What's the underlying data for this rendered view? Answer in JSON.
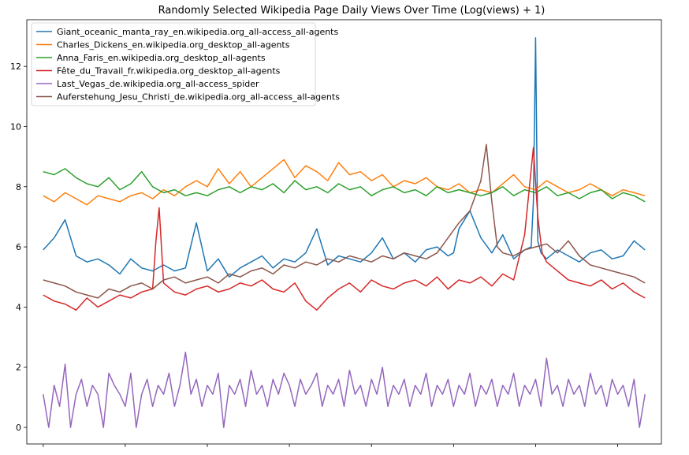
{
  "chart_data": {
    "type": "line",
    "title": "Randomly Selected Wikipedia Page Daily Views Over Time (Log(views) + 1)",
    "xlabel": "",
    "ylabel": "",
    "ylim": [
      -0.55,
      13.55
    ],
    "xlim": [
      -15,
      565
    ],
    "yticks": [
      0,
      2,
      4,
      6,
      8,
      10,
      12
    ],
    "ytick_labels": [
      "0",
      "2",
      "4",
      "6",
      "8",
      "10",
      "12"
    ],
    "xticks": [
      0,
      75,
      150,
      225,
      300,
      375,
      450,
      525
    ],
    "xtick_labels": [
      "",
      "",
      "",
      "",
      "",
      "",
      "",
      ""
    ],
    "legend_position": "top-left",
    "grid": false,
    "series": [
      {
        "name": "Giant_oceanic_manta_ray_en.wikipedia.org_all-access_all-agents",
        "color": "#1f77b4",
        "x": [
          0,
          10,
          20,
          30,
          40,
          50,
          60,
          70,
          80,
          90,
          100,
          110,
          120,
          130,
          140,
          150,
          160,
          170,
          180,
          190,
          200,
          210,
          220,
          230,
          240,
          250,
          260,
          270,
          280,
          290,
          300,
          310,
          320,
          330,
          340,
          350,
          360,
          370,
          375,
          380,
          390,
          400,
          410,
          420,
          430,
          440,
          446,
          448,
          450,
          452,
          455,
          460,
          470,
          480,
          490,
          500,
          510,
          520,
          530,
          540,
          550
        ],
        "y": [
          5.9,
          6.3,
          6.9,
          5.7,
          5.5,
          5.6,
          5.4,
          5.1,
          5.6,
          5.3,
          5.2,
          5.4,
          5.2,
          5.3,
          6.8,
          5.2,
          5.6,
          5.0,
          5.3,
          5.5,
          5.7,
          5.3,
          5.6,
          5.5,
          5.8,
          6.6,
          5.4,
          5.7,
          5.6,
          5.5,
          5.8,
          6.3,
          5.6,
          5.8,
          5.5,
          5.9,
          6.0,
          5.7,
          5.8,
          6.6,
          7.2,
          6.3,
          5.8,
          6.4,
          5.6,
          5.9,
          6.0,
          7.5,
          12.95,
          6.2,
          5.8,
          5.6,
          5.9,
          5.7,
          5.5,
          5.8,
          5.9,
          5.6,
          5.7,
          6.2,
          5.9
        ]
      },
      {
        "name": "Charles_Dickens_en.wikipedia.org_desktop_all-agents",
        "color": "#ff7f0e",
        "x": [
          0,
          10,
          20,
          30,
          40,
          50,
          60,
          70,
          80,
          90,
          100,
          110,
          120,
          130,
          140,
          150,
          160,
          170,
          180,
          190,
          200,
          210,
          220,
          230,
          240,
          250,
          260,
          270,
          280,
          290,
          300,
          310,
          320,
          330,
          340,
          350,
          360,
          370,
          380,
          390,
          400,
          410,
          420,
          430,
          440,
          450,
          460,
          470,
          480,
          490,
          500,
          510,
          520,
          530,
          540,
          550
        ],
        "y": [
          7.7,
          7.5,
          7.8,
          7.6,
          7.4,
          7.7,
          7.6,
          7.5,
          7.7,
          7.8,
          7.6,
          7.9,
          7.7,
          8.0,
          8.2,
          8.0,
          8.6,
          8.1,
          8.5,
          8.0,
          8.3,
          8.6,
          8.9,
          8.3,
          8.7,
          8.5,
          8.2,
          8.8,
          8.4,
          8.5,
          8.2,
          8.4,
          8.0,
          8.2,
          8.1,
          8.3,
          8.0,
          7.9,
          8.1,
          7.8,
          7.9,
          7.8,
          8.1,
          8.4,
          8.0,
          7.9,
          8.2,
          8.0,
          7.8,
          7.9,
          8.1,
          7.9,
          7.7,
          7.9,
          7.8,
          7.7
        ]
      },
      {
        "name": "Anna_Faris_en.wikipedia.org_desktop_all-agents",
        "color": "#2ca02c",
        "x": [
          0,
          10,
          20,
          30,
          40,
          50,
          60,
          70,
          80,
          90,
          100,
          110,
          120,
          130,
          140,
          150,
          160,
          170,
          180,
          190,
          200,
          210,
          220,
          230,
          240,
          250,
          260,
          270,
          280,
          290,
          300,
          310,
          320,
          330,
          340,
          350,
          360,
          370,
          380,
          390,
          400,
          410,
          420,
          430,
          440,
          450,
          460,
          470,
          480,
          490,
          500,
          510,
          520,
          530,
          540,
          550
        ],
        "y": [
          8.5,
          8.4,
          8.6,
          8.3,
          8.1,
          8.0,
          8.3,
          7.9,
          8.1,
          8.5,
          8.0,
          7.8,
          7.9,
          7.7,
          7.8,
          7.7,
          7.9,
          8.0,
          7.8,
          8.0,
          7.9,
          8.1,
          7.8,
          8.2,
          7.9,
          8.0,
          7.8,
          8.1,
          7.9,
          8.0,
          7.7,
          7.9,
          8.0,
          7.8,
          7.9,
          7.7,
          8.0,
          7.8,
          7.9,
          7.8,
          7.7,
          7.8,
          8.0,
          7.7,
          7.9,
          7.8,
          8.0,
          7.7,
          7.8,
          7.6,
          7.8,
          7.9,
          7.6,
          7.8,
          7.7,
          7.5
        ]
      },
      {
        "name": "Fête_du_Travail_fr.wikipedia.org_desktop_all-agents",
        "color": "#d62728",
        "x": [
          0,
          10,
          20,
          30,
          40,
          50,
          60,
          70,
          80,
          90,
          100,
          103,
          106,
          110,
          120,
          130,
          140,
          150,
          160,
          170,
          180,
          190,
          200,
          210,
          220,
          230,
          240,
          250,
          260,
          270,
          280,
          290,
          300,
          310,
          320,
          330,
          340,
          350,
          360,
          370,
          380,
          390,
          400,
          410,
          420,
          430,
          440,
          448,
          452,
          456,
          460,
          470,
          480,
          490,
          500,
          510,
          520,
          530,
          540,
          550
        ],
        "y": [
          4.4,
          4.2,
          4.1,
          3.9,
          4.3,
          4.0,
          4.2,
          4.4,
          4.3,
          4.5,
          4.6,
          6.2,
          7.3,
          4.8,
          4.5,
          4.4,
          4.6,
          4.7,
          4.5,
          4.6,
          4.8,
          4.7,
          4.9,
          4.6,
          4.5,
          4.8,
          4.2,
          3.9,
          4.3,
          4.6,
          4.8,
          4.5,
          4.9,
          4.7,
          4.6,
          4.8,
          4.9,
          4.7,
          5.0,
          4.6,
          4.9,
          4.8,
          5.0,
          4.7,
          5.1,
          4.9,
          6.4,
          9.3,
          7.0,
          5.8,
          5.5,
          5.2,
          4.9,
          4.8,
          4.7,
          4.9,
          4.6,
          4.8,
          4.5,
          4.3
        ]
      },
      {
        "name": "Last_Vegas_de.wikipedia.org_all-access_spider",
        "color": "#9467bd",
        "x": [
          0,
          5,
          10,
          15,
          20,
          25,
          30,
          35,
          40,
          45,
          50,
          55,
          60,
          65,
          70,
          75,
          80,
          85,
          90,
          95,
          100,
          105,
          110,
          115,
          120,
          125,
          130,
          135,
          140,
          145,
          150,
          155,
          160,
          165,
          170,
          175,
          180,
          185,
          190,
          195,
          200,
          205,
          210,
          215,
          220,
          225,
          230,
          235,
          240,
          245,
          250,
          255,
          260,
          265,
          270,
          275,
          280,
          285,
          290,
          295,
          300,
          305,
          310,
          315,
          320,
          325,
          330,
          335,
          340,
          345,
          350,
          355,
          360,
          365,
          370,
          375,
          380,
          385,
          390,
          395,
          400,
          405,
          410,
          415,
          420,
          425,
          430,
          435,
          440,
          445,
          450,
          455,
          460,
          465,
          470,
          475,
          480,
          485,
          490,
          495,
          500,
          505,
          510,
          515,
          520,
          525,
          530,
          535,
          540,
          545,
          550
        ],
        "y": [
          1.1,
          0.0,
          1.4,
          0.7,
          2.1,
          0.0,
          1.1,
          1.6,
          0.7,
          1.4,
          1.1,
          0.0,
          1.8,
          1.4,
          1.1,
          0.7,
          1.8,
          0.0,
          1.1,
          1.6,
          0.7,
          1.4,
          1.1,
          1.8,
          0.7,
          1.4,
          2.5,
          1.1,
          1.6,
          0.7,
          1.4,
          1.1,
          1.8,
          0.0,
          1.4,
          1.1,
          1.6,
          0.7,
          1.9,
          1.1,
          1.4,
          0.7,
          1.6,
          1.1,
          1.8,
          1.4,
          0.7,
          1.6,
          1.1,
          1.4,
          1.8,
          0.7,
          1.4,
          1.1,
          1.6,
          0.7,
          1.9,
          1.1,
          1.4,
          0.7,
          1.6,
          1.1,
          2.0,
          0.7,
          1.4,
          1.1,
          1.6,
          0.7,
          1.4,
          1.1,
          1.8,
          0.7,
          1.4,
          1.1,
          1.6,
          0.7,
          1.4,
          1.1,
          1.8,
          0.7,
          1.4,
          1.1,
          1.6,
          0.7,
          1.4,
          1.1,
          1.8,
          0.7,
          1.4,
          1.1,
          1.6,
          0.7,
          2.3,
          1.1,
          1.4,
          0.7,
          1.6,
          1.1,
          1.4,
          0.7,
          1.8,
          1.1,
          1.4,
          0.7,
          1.6,
          1.1,
          1.4,
          0.7,
          1.6,
          0.0,
          1.1
        ]
      },
      {
        "name": "Auferstehung_Jesu_Christi_de.wikipedia.org_all-access_all-agents",
        "color": "#8c564b",
        "x": [
          0,
          10,
          20,
          30,
          40,
          50,
          60,
          70,
          80,
          90,
          100,
          110,
          120,
          130,
          140,
          150,
          160,
          170,
          180,
          190,
          200,
          210,
          220,
          230,
          240,
          250,
          260,
          270,
          280,
          290,
          300,
          310,
          320,
          330,
          340,
          350,
          360,
          370,
          380,
          390,
          400,
          405,
          410,
          415,
          420,
          430,
          440,
          450,
          460,
          470,
          480,
          490,
          500,
          510,
          520,
          530,
          540,
          550
        ],
        "y": [
          4.9,
          4.8,
          4.7,
          4.5,
          4.4,
          4.3,
          4.6,
          4.5,
          4.7,
          4.8,
          4.6,
          4.9,
          5.0,
          4.8,
          4.9,
          5.0,
          4.8,
          5.1,
          5.0,
          5.2,
          5.3,
          5.1,
          5.4,
          5.3,
          5.5,
          5.4,
          5.6,
          5.5,
          5.7,
          5.6,
          5.5,
          5.7,
          5.6,
          5.8,
          5.7,
          5.6,
          5.8,
          6.3,
          6.8,
          7.2,
          8.2,
          9.4,
          7.5,
          6.0,
          5.8,
          5.7,
          5.9,
          6.0,
          6.1,
          5.8,
          6.2,
          5.7,
          5.4,
          5.3,
          5.2,
          5.1,
          5.0,
          4.8
        ]
      }
    ]
  }
}
